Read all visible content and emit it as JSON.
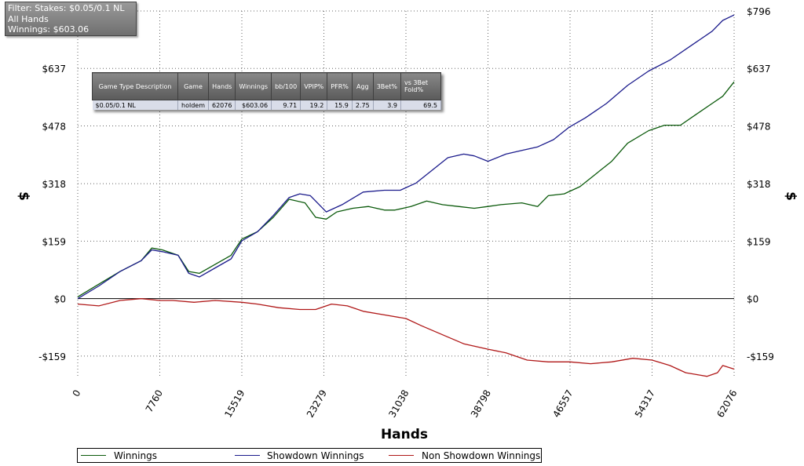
{
  "filter_box": {
    "line1": "Filter: Stakes: $0.05/0.1 NL",
    "line2": "All Hands",
    "line3": "Winnings: $603.06"
  },
  "stats_table": {
    "headers": [
      "Game Type Description",
      "Game",
      "Hands",
      "Winnings",
      "bb/100",
      "VPIP%",
      "PFR%",
      "Agg",
      "3Bet%",
      "vs 3Bet Fold%"
    ],
    "row": [
      "$0.05/0.1 NL",
      "holdem",
      "62076",
      "$603.06",
      "9.71",
      "19.2",
      "15.9",
      "2.75",
      "3.9",
      "69.5"
    ]
  },
  "legend": [
    {
      "label": "Winnings",
      "color": "#0b5a0b"
    },
    {
      "label": "Showdown Winnings",
      "color": "#1b1b8c"
    },
    {
      "label": "Non Showdown Winnings",
      "color": "#b01818"
    }
  ],
  "chart_data": {
    "type": "line",
    "xlabel": "Hands",
    "ylabel": "$",
    "xlim": [
      0,
      62076
    ],
    "ylim": [
      -220,
      796
    ],
    "x_ticks": [
      0,
      7760,
      15519,
      23279,
      31038,
      38798,
      46557,
      54317,
      62076
    ],
    "y_ticks": [
      -159,
      0,
      159,
      318,
      478,
      637,
      796
    ],
    "y_tick_labels": [
      "-$159",
      "$0",
      "$159",
      "$318",
      "$478",
      "$637",
      "$796"
    ],
    "grid": true,
    "legend_position": "bottom",
    "series": [
      {
        "name": "Winnings",
        "color": "#0b5a0b",
        "x": [
          0,
          2000,
          4000,
          6000,
          7000,
          8000,
          9500,
          10500,
          11500,
          13000,
          14500,
          15519,
          17000,
          18500,
          20000,
          21500,
          22500,
          23500,
          24500,
          26000,
          27500,
          29000,
          30000,
          31500,
          33000,
          34500,
          36000,
          37500,
          38798,
          40000,
          42000,
          43500,
          44500,
          46000,
          47500,
          49000,
          50500,
          52000,
          54000,
          55500,
          57000,
          58500,
          60000,
          61000,
          62076
        ],
        "y": [
          5,
          40,
          75,
          105,
          140,
          135,
          120,
          75,
          70,
          95,
          120,
          165,
          185,
          225,
          275,
          265,
          225,
          220,
          240,
          250,
          255,
          245,
          245,
          255,
          270,
          260,
          255,
          250,
          255,
          260,
          265,
          255,
          285,
          290,
          310,
          345,
          380,
          430,
          465,
          480,
          480,
          510,
          540,
          560,
          600
        ]
      },
      {
        "name": "Showdown Winnings",
        "color": "#1b1b8c",
        "x": [
          0,
          2000,
          4000,
          6000,
          7000,
          8000,
          9500,
          10500,
          11500,
          13000,
          14500,
          15519,
          17000,
          18500,
          20000,
          21000,
          22000,
          23500,
          25000,
          27000,
          29000,
          30500,
          32000,
          33500,
          35000,
          36500,
          37500,
          38798,
          40500,
          42000,
          43500,
          45000,
          46500,
          48000,
          50000,
          52000,
          54000,
          56000,
          58000,
          60000,
          61000,
          62076
        ],
        "y": [
          0,
          35,
          75,
          105,
          135,
          130,
          120,
          70,
          60,
          85,
          110,
          160,
          185,
          230,
          280,
          290,
          285,
          240,
          260,
          295,
          300,
          300,
          320,
          355,
          390,
          400,
          395,
          380,
          400,
          410,
          420,
          440,
          475,
          500,
          540,
          590,
          630,
          660,
          700,
          740,
          770,
          785
        ]
      },
      {
        "name": "Non Showdown Winnings",
        "color": "#b01818",
        "x": [
          0,
          2000,
          4000,
          6000,
          7760,
          9000,
          11000,
          13000,
          15519,
          17000,
          19000,
          21000,
          22500,
          24000,
          25500,
          27000,
          29000,
          31038,
          32500,
          34500,
          36500,
          38798,
          40500,
          42500,
          44500,
          46557,
          48500,
          50500,
          52500,
          54317,
          56000,
          57500,
          58500,
          59500,
          60500,
          61000,
          62076
        ],
        "y": [
          -15,
          -20,
          -5,
          0,
          -5,
          -5,
          -10,
          -5,
          -10,
          -15,
          -25,
          -30,
          -30,
          -15,
          -20,
          -35,
          -45,
          -55,
          -75,
          -100,
          -125,
          -140,
          -150,
          -170,
          -175,
          -175,
          -180,
          -175,
          -165,
          -170,
          -185,
          -205,
          -210,
          -215,
          -205,
          -185,
          -195
        ]
      }
    ]
  }
}
